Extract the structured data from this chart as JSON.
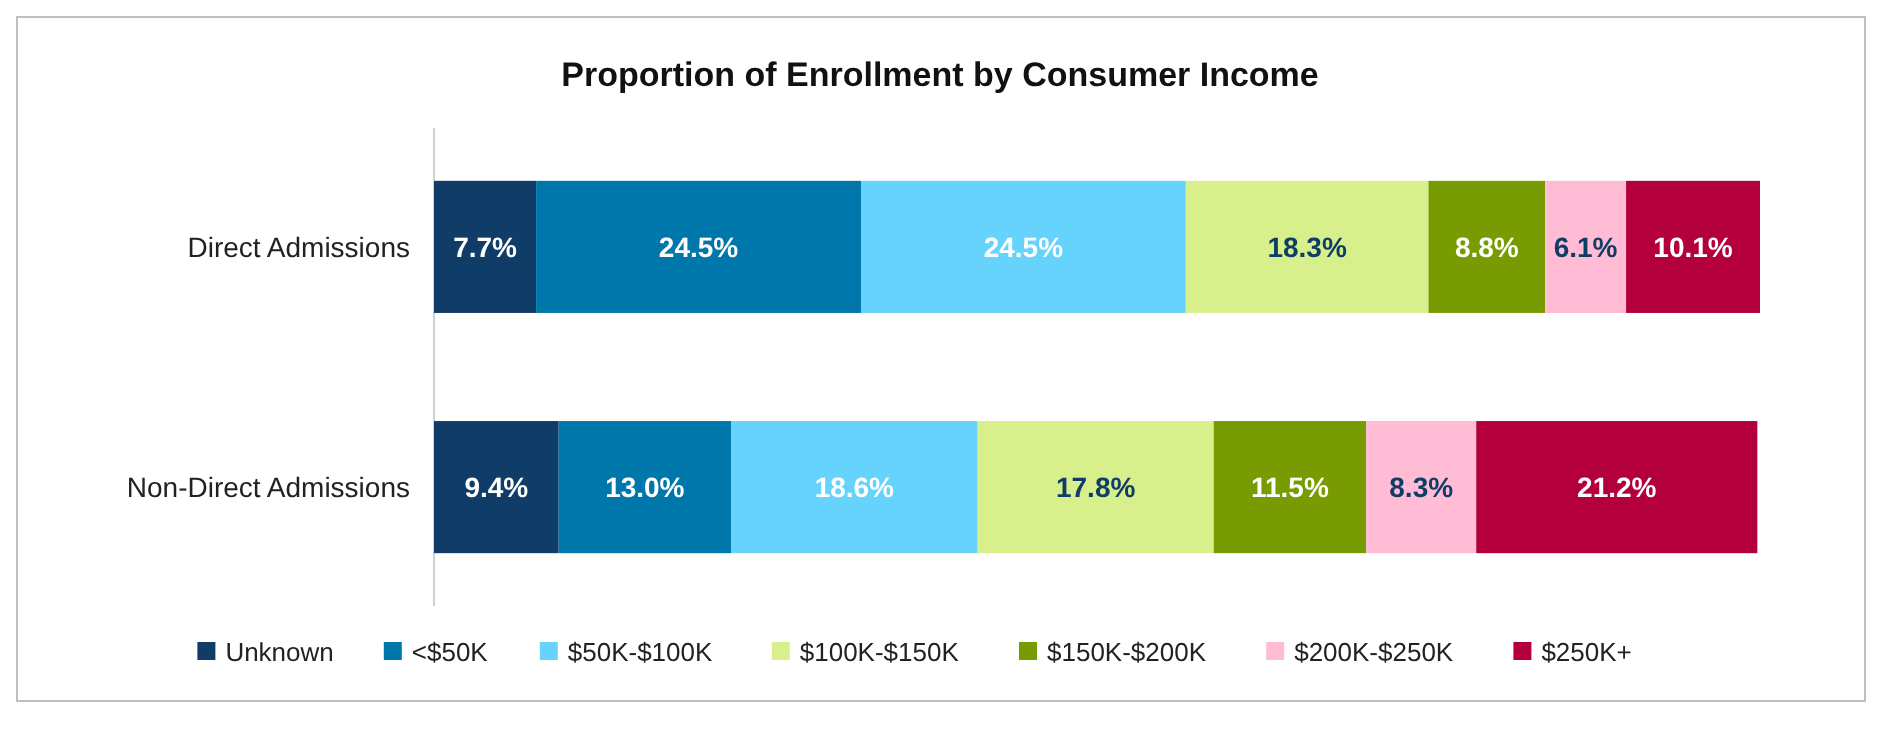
{
  "chart_data": {
    "type": "bar",
    "orientation": "horizontal",
    "stacked": true,
    "legend": "bottom",
    "title": "Proportion of Enrollment by Consumer Income",
    "categories": [
      "Direct Admissions",
      "Non-Direct Admissions"
    ],
    "series": [
      {
        "name": "Unknown",
        "color": "#0f3d68",
        "values": [
          7.7,
          9.4
        ],
        "value_labels": [
          "7.7%",
          "9.4%"
        ]
      },
      {
        "name": "<$50K",
        "color": "#0077aa",
        "values": [
          24.5,
          13.0
        ],
        "value_labels": [
          "24.5%",
          "13.0%"
        ]
      },
      {
        "name": "$50K-$100K",
        "color": "#66d3fc",
        "values": [
          24.5,
          18.6
        ],
        "value_labels": [
          "24.5%",
          "18.6%"
        ]
      },
      {
        "name": "$100K-$150K",
        "color": "#d8f08c",
        "values": [
          18.3,
          17.8
        ],
        "value_labels": [
          "18.3%",
          "17.8%"
        ]
      },
      {
        "name": "$150K-$200K",
        "color": "#789b02",
        "values": [
          8.8,
          11.5
        ],
        "value_labels": [
          "8.8%",
          "11.5%"
        ]
      },
      {
        "name": "$200K-$250K",
        "color": "#ffbcd4",
        "values": [
          6.1,
          8.3
        ],
        "value_labels": [
          "6.1%",
          "8.3%"
        ]
      },
      {
        "name": "$250K+",
        "color": "#b3003c",
        "values": [
          10.1,
          21.2
        ],
        "value_labels": [
          "10.1%",
          "21.2%"
        ]
      }
    ]
  }
}
